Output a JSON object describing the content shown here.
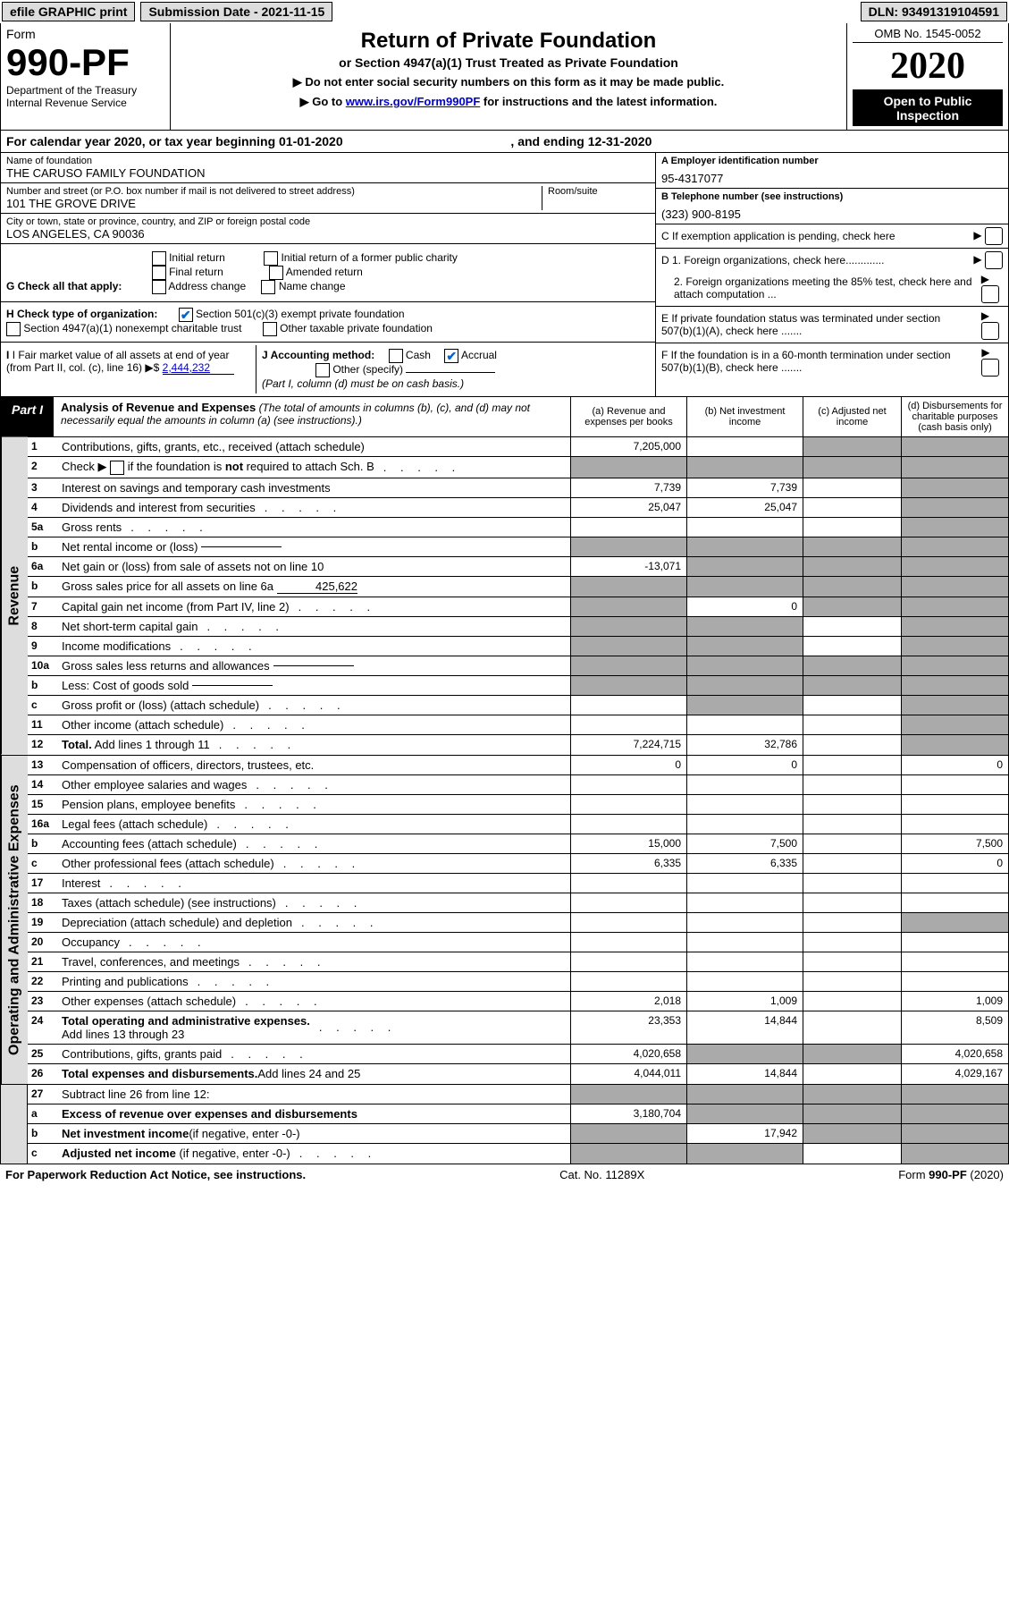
{
  "topbar": {
    "efile": "efile GRAPHIC print",
    "submission": "Submission Date - 2021-11-15",
    "dln": "DLN: 93491319104591"
  },
  "form": {
    "label": "Form",
    "number": "990-PF",
    "dept": "Department of the Treasury",
    "irs": "Internal Revenue Service"
  },
  "title": {
    "main": "Return of Private Foundation",
    "sub": "or Section 4947(a)(1) Trust Treated as Private Foundation",
    "instr1": "▶ Do not enter social security numbers on this form as it may be made public.",
    "instr2_pre": "▶ Go to ",
    "instr2_link": "www.irs.gov/Form990PF",
    "instr2_post": " for instructions and the latest information."
  },
  "yearcol": {
    "omb": "OMB No. 1545-0052",
    "year": "2020",
    "open": "Open to Public Inspection"
  },
  "cy": {
    "text_pre": "For calendar year 2020, or tax year beginning ",
    "begin": "01-01-2020",
    "text_mid": ", and ending ",
    "end": "12-31-2020"
  },
  "foundation": {
    "name_lbl": "Name of foundation",
    "name": "THE CARUSO FAMILY FOUNDATION",
    "addr_lbl": "Number and street (or P.O. box number if mail is not delivered to street address)",
    "addr": "101 THE GROVE DRIVE",
    "room_lbl": "Room/suite",
    "room": "",
    "city_lbl": "City or town, state or province, country, and ZIP or foreign postal code",
    "city": "LOS ANGELES, CA  90036"
  },
  "right_info": {
    "a_lbl": "A Employer identification number",
    "a_val": "95-4317077",
    "b_lbl": "B Telephone number (see instructions)",
    "b_val": "(323) 900-8195",
    "c_lbl": "C If exemption application is pending, check here",
    "d1_lbl": "D 1. Foreign organizations, check here.............",
    "d2_lbl": "2. Foreign organizations meeting the 85% test, check here and attach computation ...",
    "e_lbl": "E  If private foundation status was terminated under section 507(b)(1)(A), check here .......",
    "f_lbl": "F  If the foundation is in a 60-month termination under section 507(b)(1)(B), check here .......",
    "arrow": "▶"
  },
  "g": {
    "label": "G Check all that apply:",
    "opts": [
      "Initial return",
      "Final return",
      "Address change",
      "Initial return of a former public charity",
      "Amended return",
      "Name change"
    ]
  },
  "h": {
    "label": "H Check type of organization:",
    "o1": "Section 501(c)(3) exempt private foundation",
    "o2": "Section 4947(a)(1) nonexempt charitable trust",
    "o3": "Other taxable private foundation"
  },
  "i": {
    "lbl": "I Fair market value of all assets at end of year (from Part II, col. (c), line 16)",
    "arrow": "▶$",
    "val": "2,444,232"
  },
  "j": {
    "lbl": "J Accounting method:",
    "cash": "Cash",
    "accrual": "Accrual",
    "other": "Other (specify)",
    "note": "(Part I, column (d) must be on cash basis.)"
  },
  "part1": {
    "tab": "Part I",
    "title": "Analysis of Revenue and Expenses",
    "sub": "(The total of amounts in columns (b), (c), and (d) may not necessarily equal the amounts in column (a) (see instructions).)",
    "col_a": "(a)  Revenue and expenses per books",
    "col_b": "(b)  Net investment income",
    "col_c": "(c)  Adjusted net income",
    "col_d": "(d)  Disbursements for charitable purposes (cash basis only)"
  },
  "sections": {
    "revenue": "Revenue",
    "expenses": "Operating and Administrative Expenses"
  },
  "rows": [
    {
      "n": "1",
      "d": "s",
      "a": "7,205,000",
      "b": "",
      "c": "s"
    },
    {
      "n": "2",
      "d": "s",
      "dots": 1,
      "a": "s",
      "b": "s",
      "c": "s"
    },
    {
      "n": "3",
      "d": "s",
      "a": "7,739",
      "b": "7,739",
      "c": ""
    },
    {
      "n": "4",
      "d": "s",
      "dots": 1,
      "a": "25,047",
      "b": "25,047",
      "c": ""
    },
    {
      "n": "5a",
      "d": "s",
      "dots": 1,
      "a": "",
      "b": "",
      "c": ""
    },
    {
      "n": "b",
      "d": "s",
      "inline": "",
      "a": "s",
      "b": "s",
      "c": "s"
    },
    {
      "n": "6a",
      "d": "s",
      "a": "-13,071",
      "b": "s",
      "c": "s"
    },
    {
      "n": "b",
      "d": "s",
      "inline": "425,622",
      "a": "s",
      "b": "s",
      "c": "s"
    },
    {
      "n": "7",
      "d": "s",
      "dots": 1,
      "a": "s",
      "b": "0",
      "c": "s"
    },
    {
      "n": "8",
      "d": "s",
      "dots": 1,
      "a": "s",
      "b": "s",
      "c": ""
    },
    {
      "n": "9",
      "d": "s",
      "dots": 1,
      "a": "s",
      "b": "s",
      "c": ""
    },
    {
      "n": "10a",
      "d": "s",
      "inline": "",
      "a": "s",
      "b": "s",
      "c": "s"
    },
    {
      "n": "b",
      "d": "s",
      "dots": 1,
      "inline": "",
      "a": "s",
      "b": "s",
      "c": "s"
    },
    {
      "n": "c",
      "d": "s",
      "dots": 1,
      "a": "",
      "b": "s",
      "c": ""
    },
    {
      "n": "11",
      "d": "s",
      "dots": 1,
      "a": "",
      "b": "",
      "c": ""
    },
    {
      "n": "12",
      "d": "s",
      "dots": 1,
      "a": "7,224,715",
      "b": "32,786",
      "c": ""
    }
  ],
  "exp_rows": [
    {
      "n": "13",
      "d": "0",
      "a": "0",
      "b": "0",
      "c": ""
    },
    {
      "n": "14",
      "d": "",
      "dots": 1,
      "a": "",
      "b": "",
      "c": ""
    },
    {
      "n": "15",
      "d": "",
      "dots": 1,
      "a": "",
      "b": "",
      "c": ""
    },
    {
      "n": "16a",
      "d": "",
      "dots": 1,
      "a": "",
      "b": "",
      "c": ""
    },
    {
      "n": "b",
      "d": "7,500",
      "dots": 1,
      "a": "15,000",
      "b": "7,500",
      "c": ""
    },
    {
      "n": "c",
      "d": "0",
      "dots": 1,
      "a": "6,335",
      "b": "6,335",
      "c": ""
    },
    {
      "n": "17",
      "d": "",
      "dots": 1,
      "a": "",
      "b": "",
      "c": ""
    },
    {
      "n": "18",
      "d": "",
      "dots": 1,
      "a": "",
      "b": "",
      "c": ""
    },
    {
      "n": "19",
      "d": "s",
      "dots": 1,
      "a": "",
      "b": "",
      "c": ""
    },
    {
      "n": "20",
      "d": "",
      "dots": 1,
      "a": "",
      "b": "",
      "c": ""
    },
    {
      "n": "21",
      "d": "",
      "dots": 1,
      "a": "",
      "b": "",
      "c": ""
    },
    {
      "n": "22",
      "d": "",
      "dots": 1,
      "a": "",
      "b": "",
      "c": ""
    },
    {
      "n": "23",
      "d": "1,009",
      "dots": 1,
      "a": "2,018",
      "b": "1,009",
      "c": ""
    },
    {
      "n": "24",
      "d": "8,509",
      "dots": 1,
      "a": "23,353",
      "b": "14,844",
      "c": ""
    },
    {
      "n": "25",
      "d": "4,020,658",
      "dots": 1,
      "a": "4,020,658",
      "b": "s",
      "c": "s"
    },
    {
      "n": "26",
      "d": "4,029,167",
      "a": "4,044,011",
      "b": "14,844",
      "c": ""
    }
  ],
  "net_rows": [
    {
      "n": "27",
      "d": "s",
      "a": "s",
      "b": "s",
      "c": "s"
    },
    {
      "n": "a",
      "d": "s",
      "a": "3,180,704",
      "b": "s",
      "c": "s"
    },
    {
      "n": "b",
      "d": "s",
      "a": "s",
      "b": "17,942",
      "c": "s"
    },
    {
      "n": "c",
      "d": "s",
      "dots": 1,
      "a": "s",
      "b": "s",
      "c": ""
    }
  ],
  "footer": {
    "left": "For Paperwork Reduction Act Notice, see instructions.",
    "mid": "Cat. No. 11289X",
    "right": "Form 990-PF (2020)"
  }
}
